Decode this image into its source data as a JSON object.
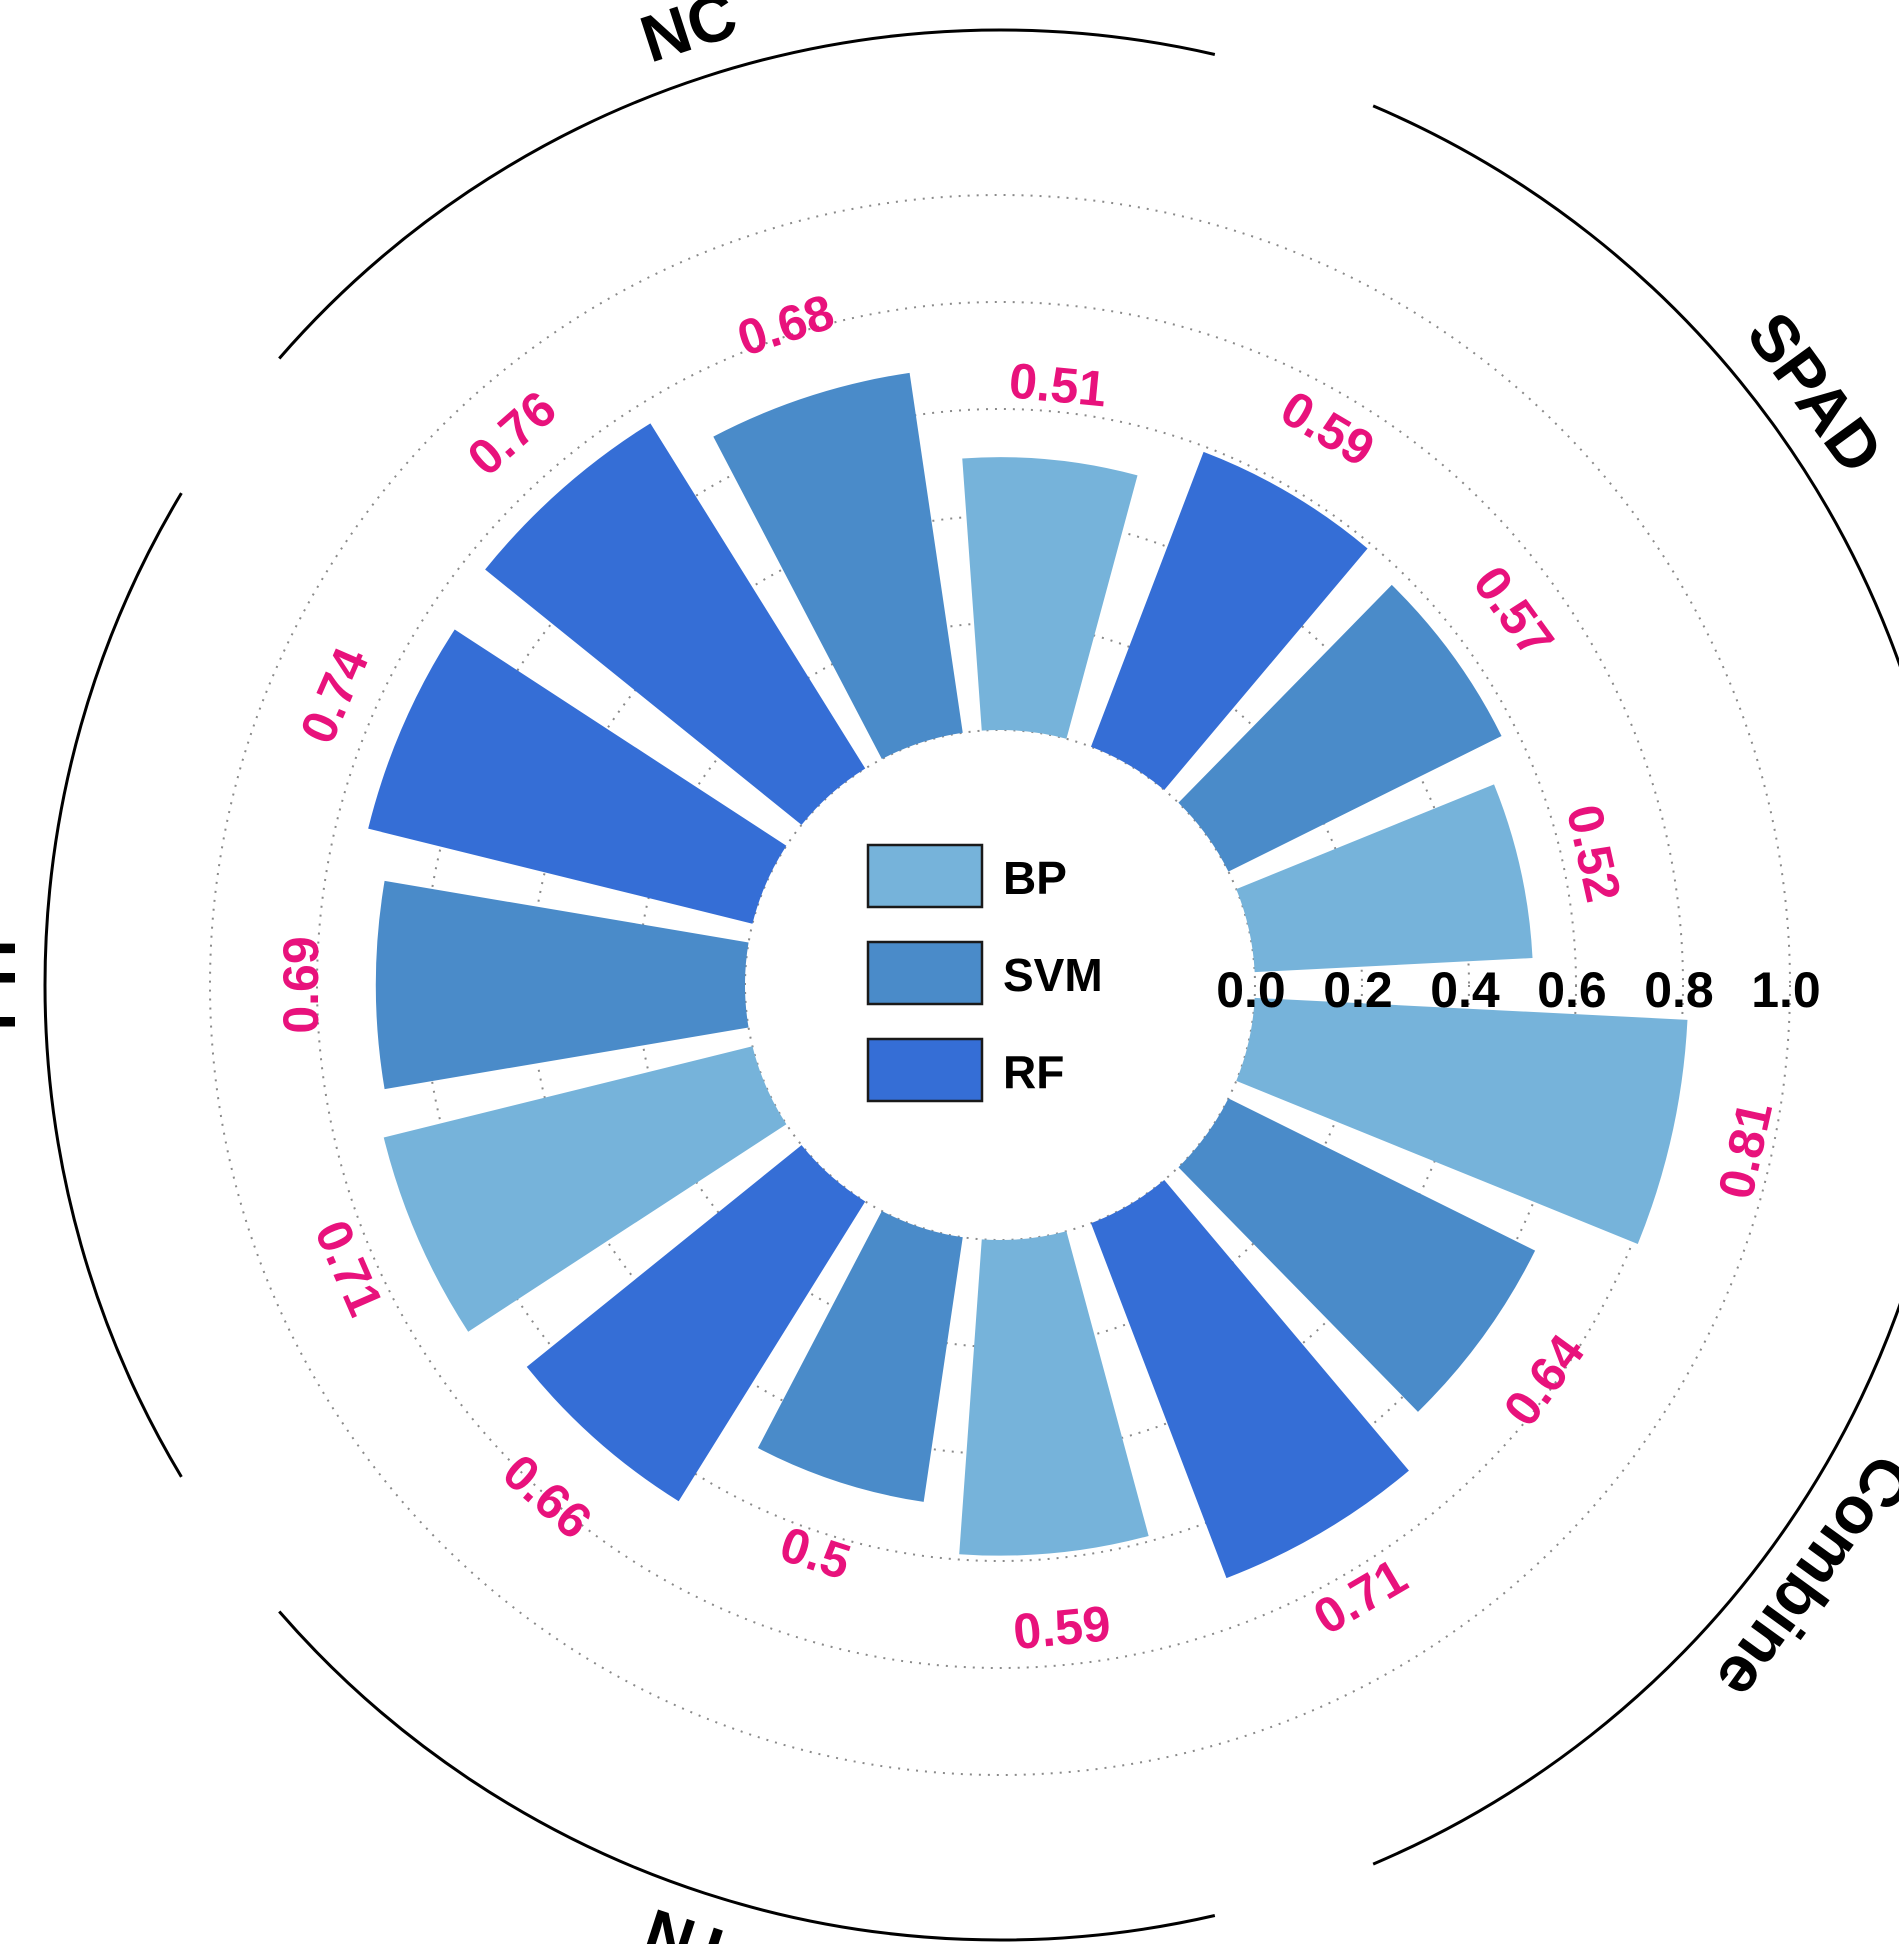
{
  "chart_data": {
    "type": "polar-bar",
    "groups": [
      "SPAD",
      "Combine",
      "TN",
      "PH",
      "NC"
    ],
    "series": [
      {
        "name": "BP",
        "color": "#76b3da",
        "values": [
          0.52,
          0.81,
          0.59,
          0.71,
          0.51
        ]
      },
      {
        "name": "SVM",
        "color": "#4a8bc9",
        "values": [
          0.57,
          0.64,
          0.5,
          0.69,
          0.68
        ]
      },
      {
        "name": "RF",
        "color": "#356ed6",
        "values": [
          0.59,
          0.71,
          0.66,
          0.74,
          0.76
        ]
      }
    ],
    "radial_ticks": [
      "0.0",
      "0.2",
      "0.4",
      "0.6",
      "0.8",
      "1.0"
    ],
    "rlim": [
      0,
      1
    ],
    "grid": true,
    "legend_position": "center",
    "value_label_color": "#e8127c"
  }
}
